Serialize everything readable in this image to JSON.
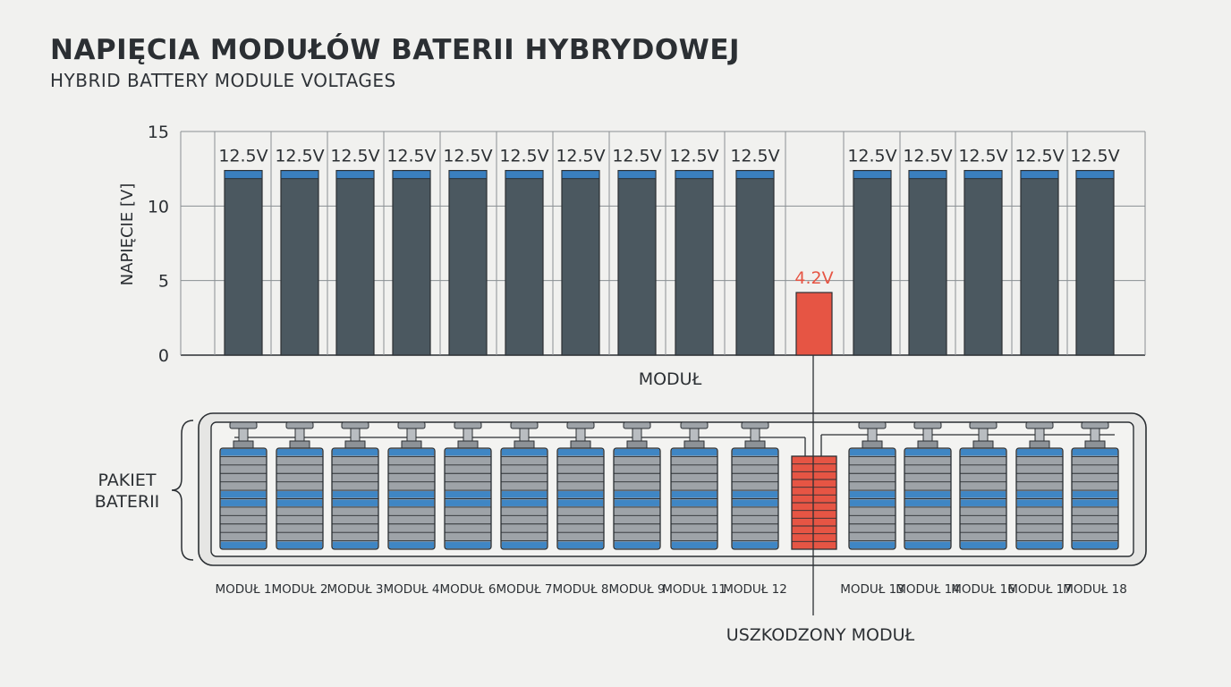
{
  "chart_data": {
    "type": "bar",
    "title": "NAPIĘCIA MODUŁÓW BATERII HYBRYDOWEJ",
    "subtitle": "HYBRID BATTERY MODULE VOLTAGES",
    "ylabel": "NAPIĘCIE [V]",
    "xlabel": "MODUŁ",
    "ylim": [
      0,
      15
    ],
    "yticks": [
      "0",
      "5",
      "10",
      "15"
    ],
    "grid": true,
    "values": [
      12.5,
      12.5,
      12.5,
      12.5,
      12.5,
      12.5,
      12.5,
      12.5,
      12.5,
      12.5,
      4.2,
      12.5,
      12.5,
      12.5,
      12.5,
      12.5
    ],
    "value_labels": [
      "12.5V",
      "12.5V",
      "12.5V",
      "12.5V",
      "12.5V",
      "12.5V",
      "12.5V",
      "12.5V",
      "12.5V",
      "12.5V",
      "4.2V",
      "12.5V",
      "12.5V",
      "12.5V",
      "12.5V",
      "12.5V"
    ],
    "faulty_index": 10
  },
  "pack": {
    "label_line1": "PAKIET",
    "label_line2": "BATERII",
    "module_labels": [
      "MODUŁ 1",
      "MODUŁ 2",
      "MODUŁ 3",
      "MODUŁ 4",
      "MODUŁ 6",
      "MODUŁ 7",
      "MODUŁ 8",
      "MODUŁ 9",
      "MODUŁ 11",
      "MODUŁ 12",
      "",
      "MODUŁ 13",
      "MODUŁ 14",
      "MODUŁ 16",
      "MODUŁ 17",
      "MODUŁ 18"
    ],
    "faulty_label": "USZKODZONY MODUŁ"
  },
  "colors": {
    "bar": "#4b5860",
    "bar_top": "#3a7fbf",
    "faulty": "#e65544",
    "grid": "#8a8f93",
    "cell_gray": "#9ea3a8",
    "cell_blue": "#3f86c4"
  }
}
